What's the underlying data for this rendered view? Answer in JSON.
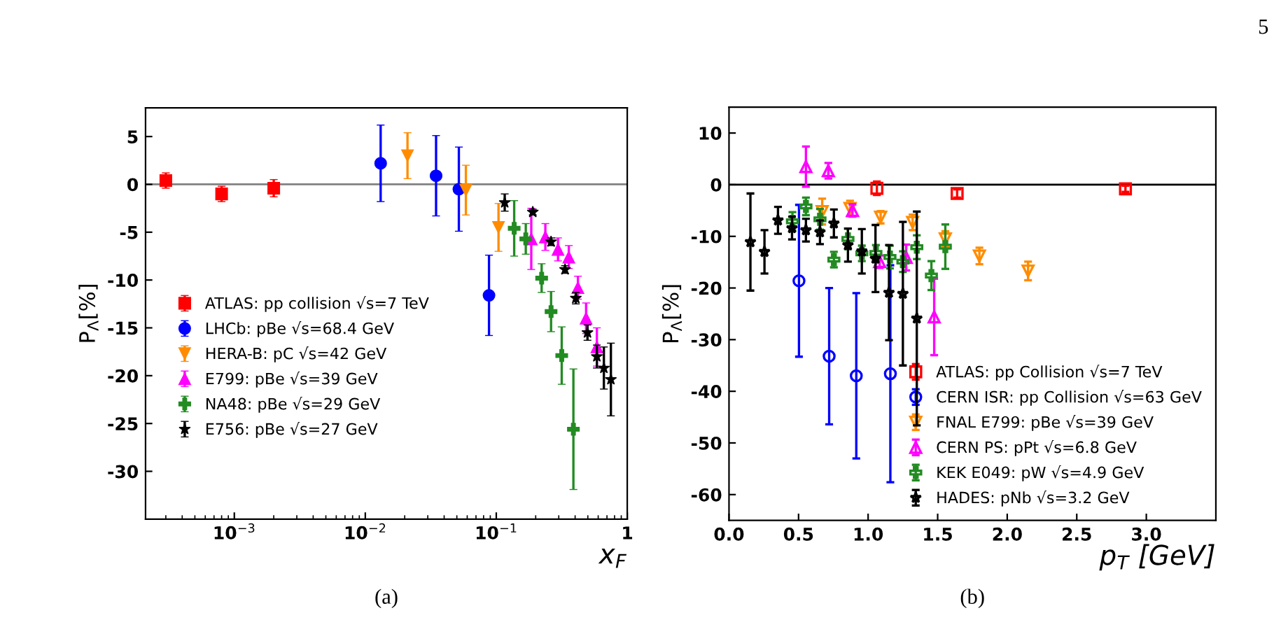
{
  "chart_data": [
    {
      "type": "scatter",
      "xlabel": "x$_{F}$",
      "ylabel": "P$_{Λ}$[%]",
      "log": "x",
      "xlim": [
        0.00021,
        1
      ],
      "ylim": [
        -35,
        8
      ],
      "xticks": [
        {
          "value": 0.001,
          "label": "10$^{−3}$"
        },
        {
          "value": 0.01,
          "label": "10$^{−2}$"
        },
        {
          "value": 0.1,
          "label": "10$^{−1}$"
        },
        1
      ],
      "yticks": [
        -30,
        -25,
        -20,
        -15,
        -10,
        -5,
        0,
        5
      ],
      "legend": "center left",
      "grid": false,
      "ref_lines": [
        {
          "axis": "y",
          "value": 0,
          "color": "#808080"
        }
      ],
      "annotations": [
        "(a)"
      ],
      "series": [
        {
          "name": "ATLAS: pp collision √s=7 TeV",
          "color": "#ff0000",
          "marker": "square",
          "x": [
            0.0003,
            0.0008,
            0.002
          ],
          "values": [
            0.4,
            -1.0,
            -0.4
          ],
          "errors": [
            0.8,
            0.8,
            0.9
          ]
        },
        {
          "name": "LHCb: pBe √s=68.4 GeV",
          "color": "#0000ff",
          "marker": "circle",
          "x": [
            0.0131,
            0.0347,
            0.0518,
            0.088
          ],
          "values": [
            2.2,
            0.9,
            -0.5,
            -11.6
          ],
          "errors": [
            4.0,
            4.2,
            4.4,
            4.2
          ]
        },
        {
          "name": "HERA-B: pC √s=42 GeV",
          "color": "#ff8c00",
          "marker": "triangle_down",
          "x": [
            0.021,
            0.0586,
            0.104
          ],
          "values": [
            3.0,
            -0.6,
            -4.5
          ],
          "errors": [
            2.4,
            2.6,
            2.5
          ]
        },
        {
          "name": "E799: pBe √s=39 GeV",
          "color": "#ff00ff",
          "marker": "triangle",
          "x": [
            0.185,
            0.237,
            0.296,
            0.358,
            0.42,
            0.485,
            0.586
          ],
          "values": [
            -5.7,
            -5.5,
            -6.8,
            -7.6,
            -10.8,
            -14.0,
            -17.0
          ],
          "errors": [
            3.2,
            1.4,
            1.2,
            1.2,
            1.2,
            1.6,
            2.0
          ]
        },
        {
          "name": "NA48: pBe √s=29 GeV",
          "color": "#228b22",
          "marker": "plus",
          "x": [
            0.137,
            0.168,
            0.222,
            0.262,
            0.316,
            0.388
          ],
          "values": [
            -4.6,
            -5.7,
            -9.8,
            -13.3,
            -17.9,
            -25.6
          ],
          "errors": [
            2.9,
            1.6,
            1.5,
            2.1,
            3.0,
            6.3
          ]
        },
        {
          "name": "E756: pBe √s=27 GeV",
          "color": "#000000",
          "marker": "star",
          "x": [
            0.116,
            0.19,
            0.262,
            0.335,
            0.405,
            0.497,
            0.586,
            0.663,
            0.75
          ],
          "values": [
            -1.9,
            -2.9,
            -6.0,
            -8.9,
            -11.9,
            -15.5,
            -18.0,
            -19.2,
            -20.4
          ],
          "errors": [
            0.9,
            0.3,
            0.4,
            0.4,
            0.6,
            0.8,
            1.2,
            2.2,
            3.8
          ]
        }
      ]
    },
    {
      "type": "scatter",
      "xlabel": "p$_{T}$ [GeV]",
      "ylabel": "P$_{Λ}$[%]",
      "xlim": [
        0,
        3.5
      ],
      "ylim": [
        -65,
        15
      ],
      "xticks": [
        {
          "value": 0,
          "label": "0.0"
        },
        0.5,
        {
          "value": 1,
          "label": "1.0"
        },
        1.5,
        {
          "value": 2,
          "label": "2.0"
        },
        2.5,
        {
          "value": 3,
          "label": "3.0"
        }
      ],
      "yticks": [
        -60,
        -50,
        -40,
        -30,
        -20,
        -10,
        0,
        10
      ],
      "legend": "bottom right",
      "grid": false,
      "ref_lines": [
        {
          "axis": "y",
          "value": 0,
          "color": "#000000"
        }
      ],
      "annotations": [
        "(b)",
        "5"
      ],
      "series": [
        {
          "name": "ATLAS: pp Collision √s=7 TeV",
          "color": "#ff0000",
          "marker": "square",
          "x": [
            1.063,
            1.64,
            2.85
          ],
          "values": [
            -0.7,
            -1.7,
            -0.8
          ],
          "errors": [
            1.3,
            0.8,
            0.6
          ]
        },
        {
          "name": "CERN ISR: pp Collision √s=63 GeV",
          "color": "#0000ff",
          "marker": "circle",
          "x": [
            0.503,
            0.72,
            0.915,
            1.16
          ],
          "values": [
            -18.6,
            -33.2,
            -37.0,
            -36.6
          ],
          "errors": [
            14.7,
            13.2,
            16.0,
            21.0
          ]
        },
        {
          "name": "FNAL E799: pBe √s=39 GeV",
          "color": "#ff8c00",
          "marker": "triangle_down",
          "x": [
            0.67,
            0.87,
            1.09,
            1.32,
            1.555,
            1.8,
            2.15
          ],
          "values": [
            -5.2,
            -4.6,
            -6.3,
            -7.3,
            -10.5,
            -13.8,
            -16.7
          ],
          "errors": [
            2.5,
            1.5,
            1.2,
            1.5,
            1.5,
            1.6,
            1.8
          ]
        },
        {
          "name": "CERN PS: pPt √s=6.8 GeV",
          "color": "#ff00ff",
          "marker": "triangle",
          "x": [
            0.553,
            0.714,
            0.888,
            1.083,
            1.274,
            1.475
          ],
          "values": [
            3.5,
            2.7,
            -5.0,
            -14.9,
            -14.1,
            -25.6
          ],
          "errors": [
            3.9,
            1.5,
            1.2,
            1.2,
            2.5,
            7.4
          ]
        },
        {
          "name": "KEK E049: pW √s=4.9 GeV",
          "color": "#228b22",
          "marker": "plus",
          "x": [
            0.456,
            0.553,
            0.654,
            0.754,
            0.855,
            0.955,
            1.056,
            1.157,
            1.25,
            1.35,
            1.455,
            1.555
          ],
          "values": [
            -7.1,
            -4.2,
            -6.7,
            -14.5,
            -10.5,
            -13.3,
            -13.2,
            -14.0,
            -14.9,
            -12.1,
            -17.6,
            -12.0
          ],
          "errors": [
            1.8,
            1.7,
            2.0,
            1.5,
            2.0,
            1.5,
            1.5,
            2.2,
            2.0,
            2.3,
            2.8,
            4.3
          ]
        },
        {
          "name": "HADES: pNb √s=3.2 GeV",
          "color": "#000000",
          "marker": "star",
          "x": [
            0.154,
            0.255,
            0.352,
            0.453,
            0.553,
            0.654,
            0.754,
            0.855,
            0.955,
            1.053,
            1.15,
            1.25,
            1.35
          ],
          "values": [
            -11.1,
            -13.0,
            -6.9,
            -8.4,
            -8.8,
            -9.2,
            -7.5,
            -11.7,
            -12.9,
            -14.3,
            -20.9,
            -21.1,
            -25.9
          ],
          "errors": [
            9.4,
            4.2,
            2.6,
            2.2,
            2.2,
            2.3,
            2.7,
            3.2,
            4.3,
            6.5,
            9.2,
            13.9,
            20.7
          ]
        }
      ]
    }
  ]
}
